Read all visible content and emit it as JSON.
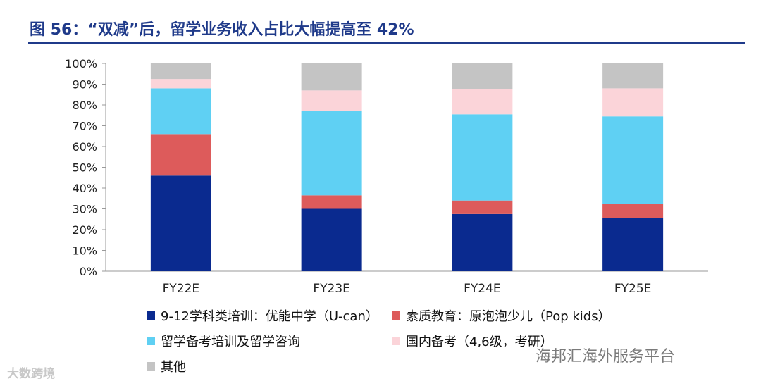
{
  "title": "图 56：“双减”后，留学业务收入占比大幅提高至 42%",
  "watermarks": {
    "left": "大数跨境",
    "right": "海邦汇海外服务平台"
  },
  "chart_data": {
    "type": "bar",
    "stacked": true,
    "categories": [
      "FY22E",
      "FY23E",
      "FY24E",
      "FY25E"
    ],
    "ylim": [
      0,
      100
    ],
    "yticks": [
      "0%",
      "10%",
      "20%",
      "30%",
      "40%",
      "50%",
      "60%",
      "70%",
      "80%",
      "90%",
      "100%"
    ],
    "legend_position": "bottom",
    "series": [
      {
        "name": "9-12学科类培训：优能中学（U-can）",
        "color": "#0a2a8f",
        "values": [
          46,
          30,
          27.5,
          25.5
        ]
      },
      {
        "name": "素质教育：原泡泡少儿（Pop kids）",
        "color": "#dd5b5b",
        "values": [
          20,
          6.5,
          6.5,
          7
        ]
      },
      {
        "name": "留学备考培训及留学咨询",
        "color": "#5fd0f3",
        "values": [
          22,
          40.5,
          41.5,
          42
        ]
      },
      {
        "name": "国内备考（4,6级，考研）",
        "color": "#fbd4d9",
        "values": [
          4.5,
          10,
          12,
          13.5
        ]
      },
      {
        "name": "其他",
        "color": "#c4c4c4",
        "values": [
          7.5,
          13,
          12.5,
          12
        ]
      }
    ]
  }
}
